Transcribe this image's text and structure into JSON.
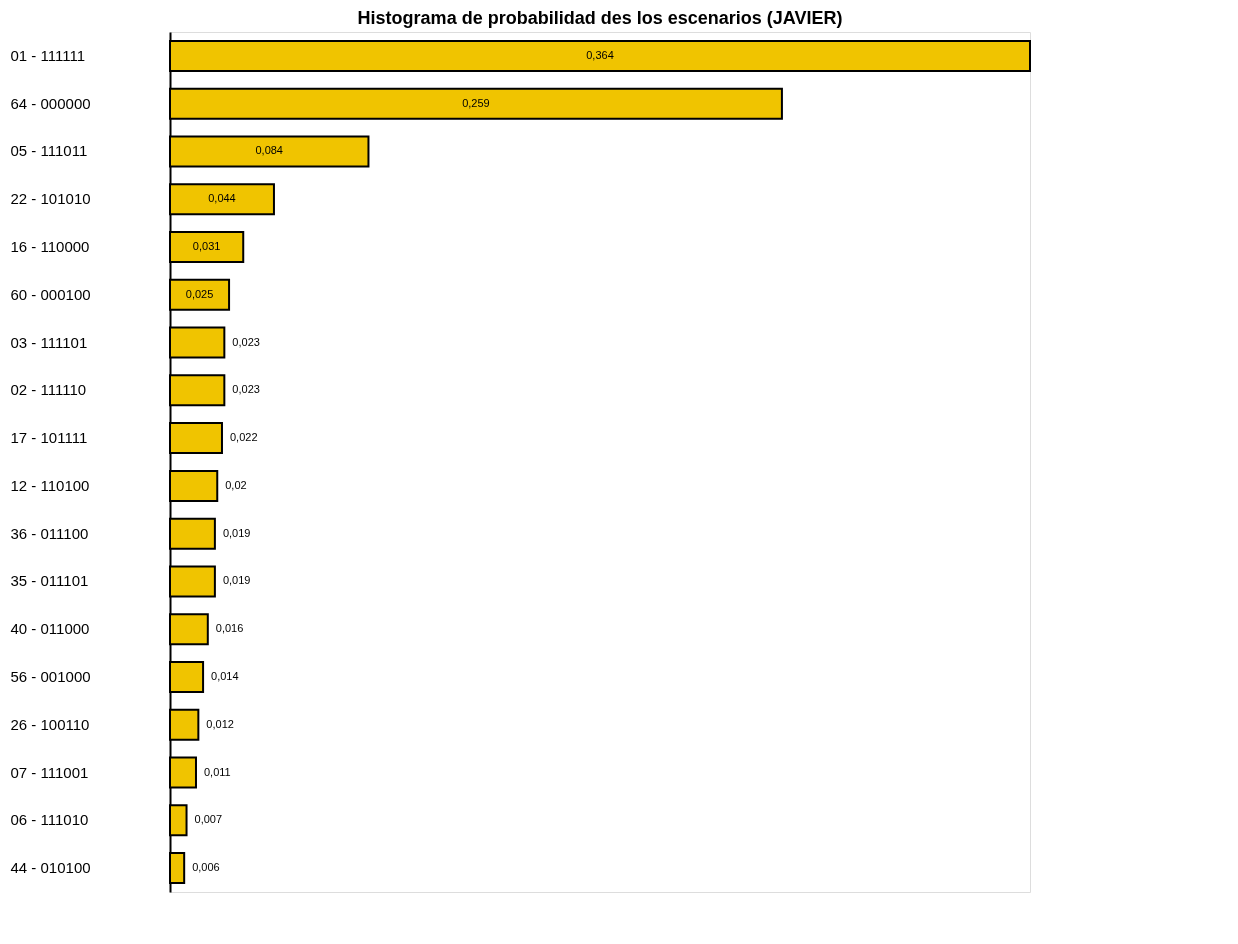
{
  "chart_data": {
    "type": "bar",
    "orientation": "horizontal",
    "tick_labels": "y",
    "title": "Histograma de probabilidad des los escenarios (JAVIER)",
    "categories": [
      "01 - 111111",
      "64 - 000000",
      "05 - 111011",
      "22 - 101010",
      "16 - 110000",
      "60 - 000100",
      "03 - 111101",
      "02 - 111110",
      "17 - 101111",
      "12 - 110100",
      "36 - 011100",
      "35 - 011101",
      "40 - 011000",
      "56 - 001000",
      "26 - 100110",
      "07 - 111001",
      "06 - 111010",
      "44 - 010100"
    ],
    "values": [
      0.364,
      0.259,
      0.084,
      0.044,
      0.031,
      0.025,
      0.023,
      0.023,
      0.022,
      0.02,
      0.019,
      0.019,
      0.016,
      0.014,
      0.012,
      0.011,
      0.007,
      0.006
    ],
    "value_labels": [
      "0,364",
      "0,259",
      "0,084",
      "0,044",
      "0,031",
      "0,025",
      "0,023",
      "0,023",
      "0,022",
      "0,02",
      "0,019",
      "0,019",
      "0,016",
      "0,014",
      "0,012",
      "0,011",
      "0,007",
      "0,006"
    ],
    "color": "#f0c400"
  }
}
